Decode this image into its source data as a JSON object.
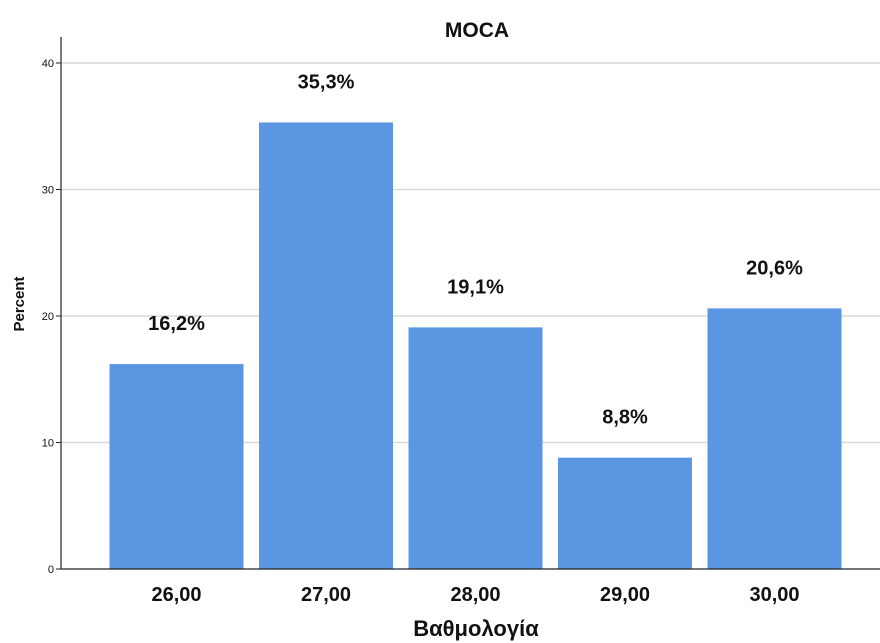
{
  "chart_data": {
    "type": "bar",
    "title": "MOCA",
    "xlabel": "Βαθμολογία",
    "ylabel": "Percent",
    "categories": [
      "26,00",
      "27,00",
      "28,00",
      "29,00",
      "30,00"
    ],
    "values": [
      16.2,
      35.3,
      19.1,
      8.8,
      20.6
    ],
    "data_labels": [
      "16,2%",
      "35,3%",
      "19,1%",
      "8,8%",
      "20,6%"
    ],
    "ylim": [
      0,
      40
    ],
    "yticks": [
      0,
      10,
      20,
      30,
      40
    ],
    "grid": true,
    "legend": "none",
    "colors": {
      "bar": "#5b96e3",
      "grid": "#d9d9d9",
      "axis": "#222222"
    }
  }
}
